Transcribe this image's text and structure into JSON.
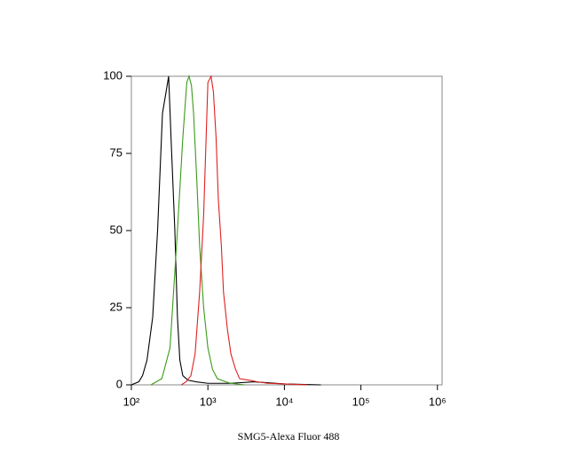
{
  "chart_data": {
    "type": "line",
    "x_label": "SMG5-Alexa Fluor 488",
    "log_x": true,
    "xlim": [
      100,
      1150000
    ],
    "xticks": [
      {
        "value": 100,
        "label": "10²"
      },
      {
        "value": 1000,
        "label": "10³"
      },
      {
        "value": 10000,
        "label": "10⁴"
      },
      {
        "value": 100000,
        "label": "10⁵"
      },
      {
        "value": 1000000,
        "label": "10⁶"
      }
    ],
    "ylim": [
      0,
      100
    ],
    "yticks": [
      0,
      25,
      50,
      75,
      100
    ],
    "series": [
      {
        "color": "#000000",
        "x": [
          100,
          125,
          140,
          160,
          190,
          220,
          255,
          280,
          307,
          330,
          370,
          400,
          430,
          470,
          550,
          700,
          1000,
          2000,
          4000,
          10000,
          30000
        ],
        "values": [
          0,
          1,
          3,
          8,
          22,
          50,
          88,
          94,
          100,
          80,
          50,
          22,
          8,
          3,
          1.5,
          1,
          0.5,
          0.5,
          1,
          0.3,
          0
        ]
      },
      {
        "color": "#3a9a1a",
        "x": [
          180,
          250,
          320,
          400,
          470,
          530,
          567,
          610,
          650,
          720,
          780,
          880,
          1000,
          1150,
          1330,
          1700,
          2000,
          3000
        ],
        "values": [
          0,
          2,
          12,
          50,
          80,
          98,
          100,
          97,
          88,
          65,
          45,
          25,
          12,
          5,
          2,
          1,
          0.5,
          0
        ]
      },
      {
        "color": "#e02020",
        "x": [
          450,
          520,
          600,
          680,
          780,
          880,
          1000,
          1100,
          1180,
          1280,
          1370,
          1500,
          1600,
          1800,
          2000,
          2300,
          2600,
          3500,
          4400,
          6000,
          10000,
          20000
        ],
        "values": [
          0,
          1,
          3,
          10,
          30,
          55,
          98,
          100,
          95,
          80,
          60,
          45,
          30,
          18,
          10,
          5,
          2,
          1.5,
          1,
          0.5,
          0.3,
          0
        ]
      }
    ]
  }
}
